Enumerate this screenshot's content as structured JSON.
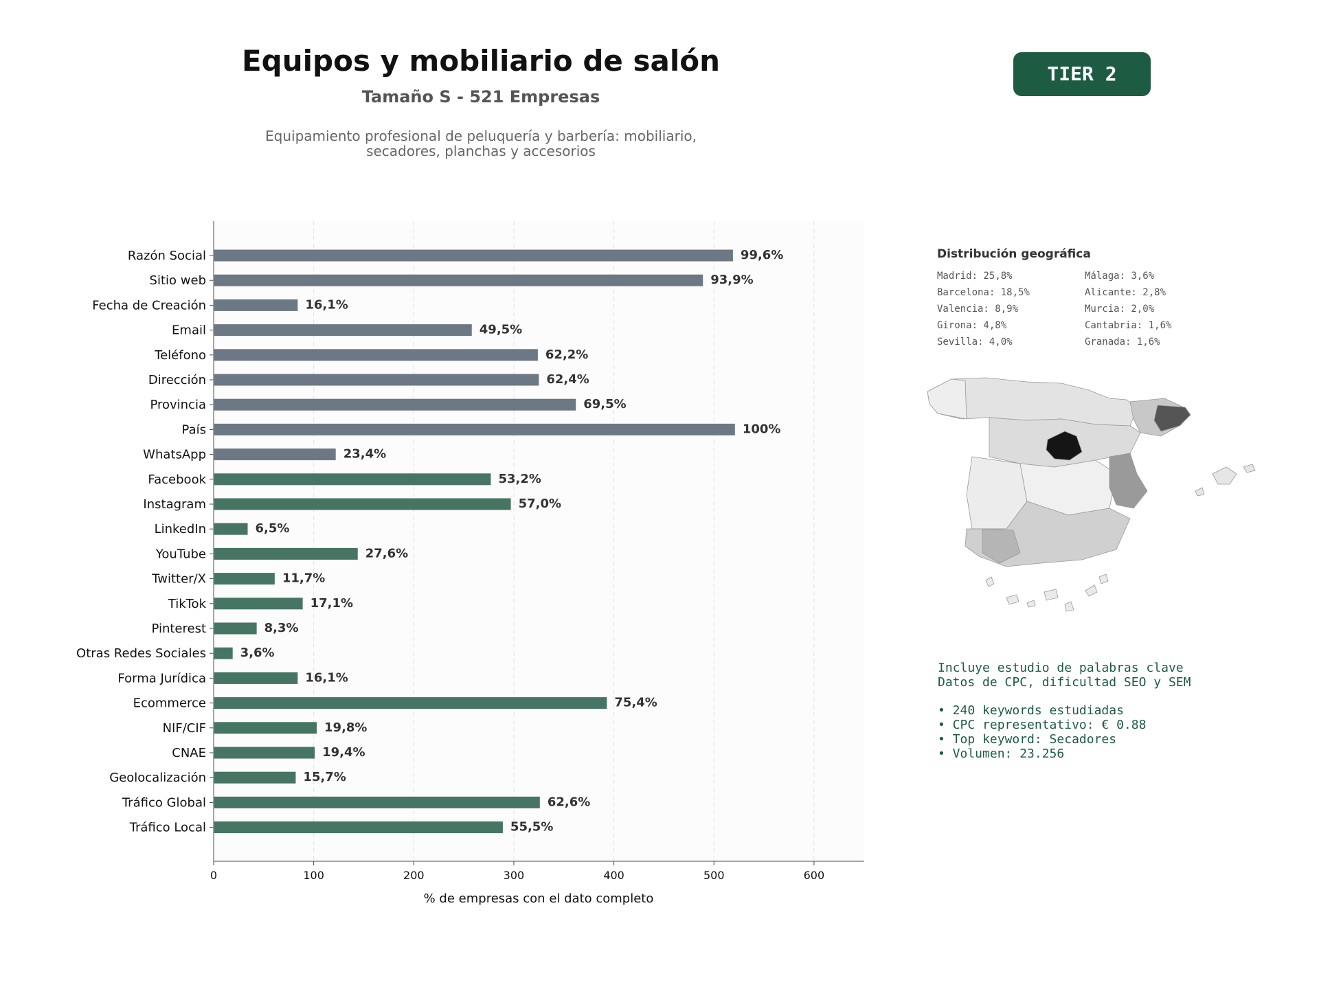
{
  "header": {
    "title": "Equipos y mobiliario de salón",
    "subtitle": "Tamaño S - 521 Empresas",
    "description_lines": [
      "Equipamiento profesional de peluquería y barbería: mobiliario,",
      "secadores, planchas y accesorios"
    ],
    "tier_label": "TIER 2"
  },
  "colors": {
    "gray_bar": "#6c7884",
    "green_bar": "#467563",
    "accent": "#1d5b43"
  },
  "chart_data": {
    "type": "bar",
    "orientation": "horizontal",
    "categories": [
      "Razón Social",
      "Sitio web",
      "Fecha de Creación",
      "Email",
      "Teléfono",
      "Dirección",
      "Provincia",
      "País",
      "WhatsApp",
      "Facebook",
      "Instagram",
      "LinkedIn",
      "YouTube",
      "Twitter/X",
      "TikTok",
      "Pinterest",
      "Otras Redes Sociales",
      "Forma Jurídica",
      "Ecommerce",
      "NIF/CIF",
      "CNAE",
      "Geolocalización",
      "Tráfico Global",
      "Tráfico Local"
    ],
    "values": [
      519,
      489,
      84,
      258,
      324,
      325,
      362,
      521,
      122,
      277,
      297,
      34,
      144,
      61,
      89,
      43,
      19,
      84,
      393,
      103,
      101,
      82,
      326,
      289
    ],
    "labels": [
      "99,6%",
      "93,9%",
      "16,1%",
      "49,5%",
      "62,2%",
      "62,4%",
      "69,5%",
      "100%",
      "23,4%",
      "53,2%",
      "57,0%",
      "6,5%",
      "27,6%",
      "11,7%",
      "17,1%",
      "8,3%",
      "3,6%",
      "16,1%",
      "75,4%",
      "19,8%",
      "19,4%",
      "15,7%",
      "62,6%",
      "55,5%"
    ],
    "bar_groups": [
      "gray",
      "gray",
      "gray",
      "gray",
      "gray",
      "gray",
      "gray",
      "gray",
      "gray",
      "green",
      "green",
      "green",
      "green",
      "green",
      "green",
      "green",
      "green",
      "green",
      "green",
      "green",
      "green",
      "green",
      "green",
      "green"
    ],
    "xlabel": "% de empresas con el dato completo",
    "xlim": [
      0,
      650
    ],
    "xticks": [
      0,
      100,
      200,
      300,
      400,
      500,
      600
    ],
    "grid": "vertical dashed"
  },
  "geo": {
    "title": "Distribución geográfica",
    "entries": [
      "Madrid: 25,8%",
      "Málaga: 3,6%",
      "Barcelona: 18,5%",
      "Alicante: 2,8%",
      "Valencia: 8,9%",
      "Murcia: 2,0%",
      "Girona: 4,8%",
      "Cantabria: 1,6%",
      "Sevilla: 4,0%",
      "Granada: 1,6%"
    ]
  },
  "keywords": {
    "lines": [
      "Incluye estudio de palabras clave",
      "Datos de CPC, dificultad SEO y SEM"
    ],
    "bullets": [
      "• 240 keywords estudiadas",
      "• CPC representativo: € 0.88",
      "• Top keyword: Secadores",
      "• Volumen: 23.256"
    ]
  }
}
